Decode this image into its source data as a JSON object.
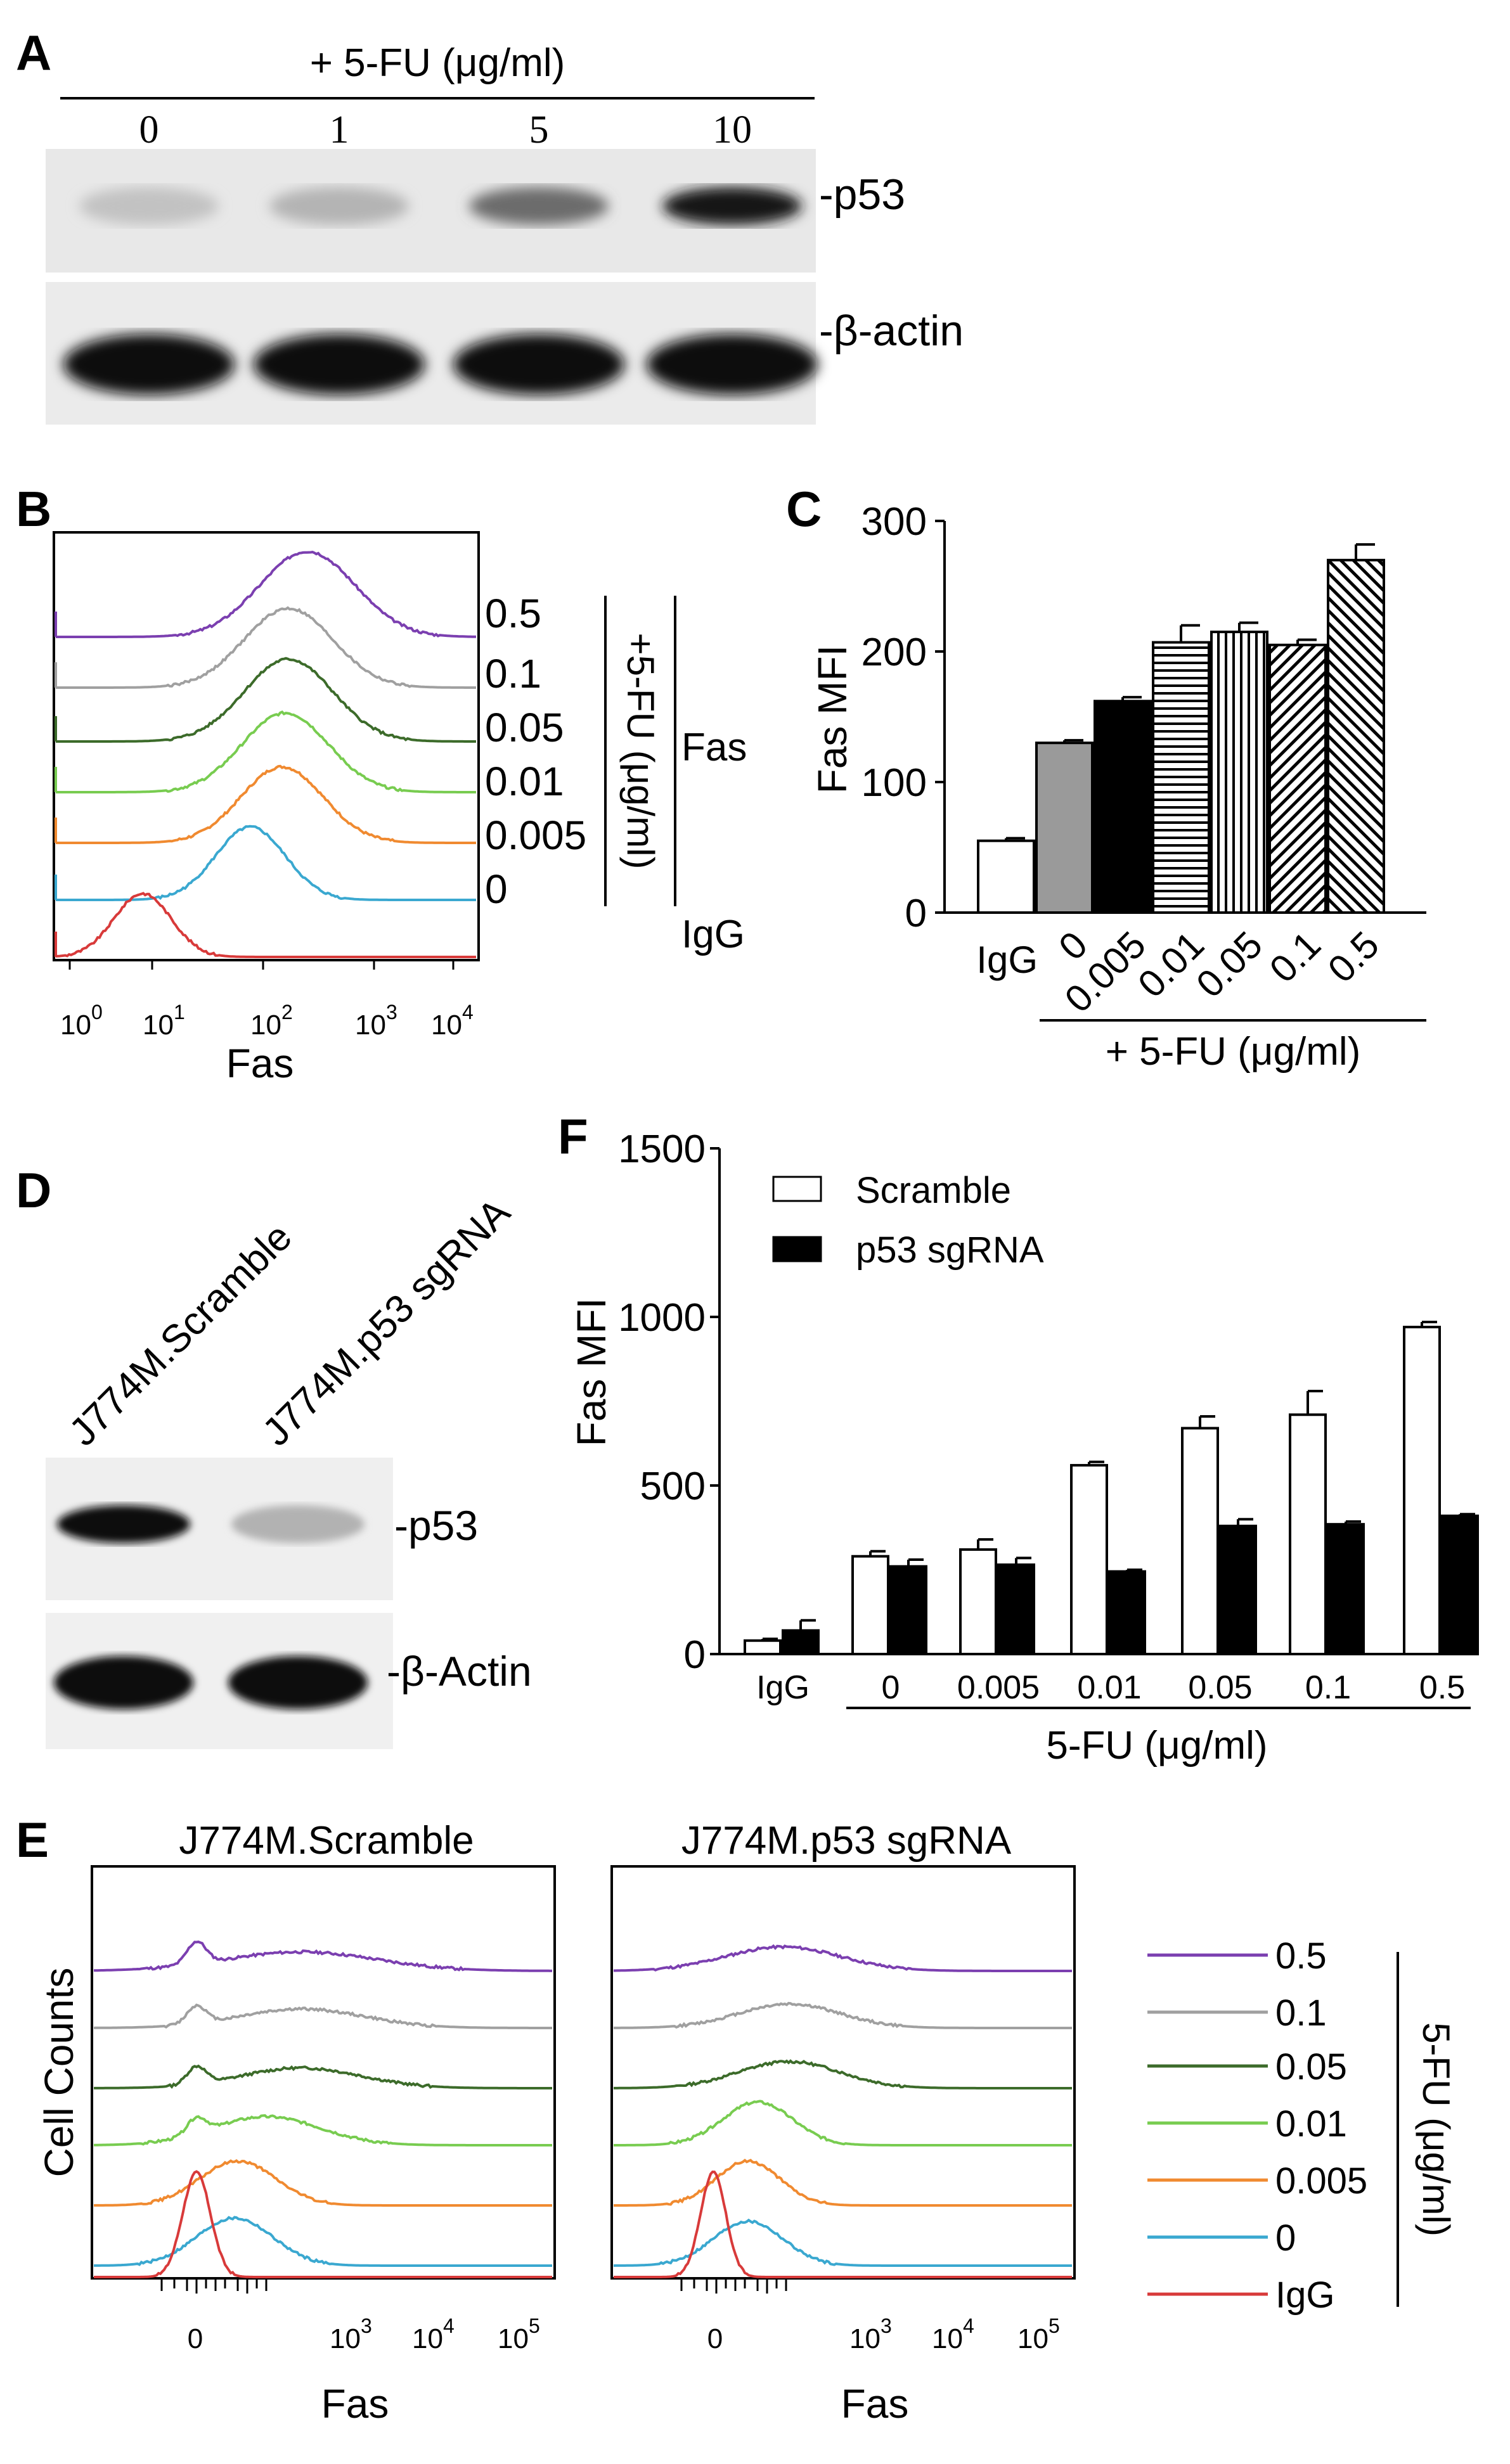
{
  "panel_labels": {
    "a": "A",
    "b": "B",
    "c": "C",
    "d": "D",
    "e": "E",
    "f": "F"
  },
  "panel_a": {
    "treatment": "+ 5-FU (μg/ml)",
    "doses": [
      "0",
      "1",
      "5",
      "10"
    ],
    "bands": [
      {
        "label": "-p53",
        "intensity": [
          0.18,
          0.24,
          0.55,
          0.92
        ]
      },
      {
        "label": "-β-actin",
        "intensity": [
          0.95,
          0.95,
          0.95,
          0.95
        ]
      }
    ]
  },
  "panel_b": {
    "xlabel": "Fas",
    "x_ticks": [
      "10",
      "10",
      "10",
      "10",
      "10"
    ],
    "x_tick_exponents": [
      "0",
      "1",
      "2",
      "3",
      "4"
    ],
    "curve_labels": [
      "0.5",
      "0.1",
      "0.05",
      "0.01",
      "0.005",
      "0"
    ],
    "side_label_dose": "+5-FU (μg/ml)",
    "side_label_fas": "Fas",
    "side_label_igg": "IgG",
    "colors": [
      "#7b3fb0",
      "#a0a0a0",
      "#3c6b2a",
      "#78cc50",
      "#f08a30",
      "#3aa8d0",
      "#d83a3a"
    ]
  },
  "panel_d": {
    "lanes": [
      "J774M.Scramble",
      "J774M.p53 sgRNA"
    ],
    "bands": [
      {
        "label": "-p53",
        "intensity": [
          0.95,
          0.25
        ]
      },
      {
        "label": "-β-Actin",
        "intensity": [
          0.95,
          0.95
        ]
      }
    ]
  },
  "panel_e": {
    "ylabel": "Cell Counts",
    "plots": [
      {
        "title": "J774M.Scramble",
        "xlabel": "Fas"
      },
      {
        "title": "J774M.p53 sgRNA",
        "xlabel": "Fas"
      }
    ],
    "x_ticks": [
      "0",
      "10",
      "10",
      "10"
    ],
    "x_tick_exponents": [
      "",
      "3",
      "4",
      "5"
    ],
    "legend": [
      {
        "label": "0.5",
        "color": "#7b3fb0"
      },
      {
        "label": "0.1",
        "color": "#a0a0a0"
      },
      {
        "label": "0.05",
        "color": "#3c6b2a"
      },
      {
        "label": "0.01",
        "color": "#78cc50"
      },
      {
        "label": "0.005",
        "color": "#f08a30"
      },
      {
        "label": "0",
        "color": "#3aa8d0"
      },
      {
        "label": "IgG",
        "color": "#d83a3a"
      }
    ],
    "legend_title": "5-FU (μg/ml)"
  },
  "chart_data": [
    {
      "id": "C",
      "type": "bar",
      "ylabel": "Fas MFI",
      "xlabel": "+ 5-FU (μg/ml)",
      "categories": [
        "IgG",
        "0",
        "0.005",
        "0.01",
        "0.05",
        "0.1",
        "0.5"
      ],
      "values": [
        55,
        130,
        162,
        207,
        215,
        205,
        270
      ],
      "errors": [
        2,
        2,
        3,
        13,
        7,
        4,
        12
      ],
      "fills": [
        "white",
        "gray",
        "black",
        "hlines",
        "vlines",
        "bslash",
        "fslash"
      ],
      "ylim": [
        0,
        300
      ],
      "y_ticks": [
        "0",
        "100",
        "200",
        "300"
      ]
    },
    {
      "id": "F",
      "type": "bar",
      "ylabel": "Fas MFI",
      "xlabel": "5-FU (μg/ml)",
      "categories": [
        "IgG",
        "0",
        "0.005",
        "0.01",
        "0.05",
        "0.1",
        "0.5"
      ],
      "series": [
        {
          "name": "Scramble",
          "color": "#ffffff",
          "values": [
            40,
            290,
            310,
            560,
            670,
            710,
            970
          ],
          "errors": [
            5,
            15,
            30,
            10,
            35,
            70,
            15
          ]
        },
        {
          "name": "p53 sgRNA",
          "color": "#000000",
          "values": [
            70,
            260,
            265,
            245,
            380,
            385,
            410
          ],
          "errors": [
            30,
            20,
            20,
            5,
            20,
            8,
            5
          ]
        }
      ],
      "ylim": [
        0,
        1500
      ],
      "y_ticks": [
        "0",
        "500",
        "1000",
        "1500"
      ]
    }
  ]
}
